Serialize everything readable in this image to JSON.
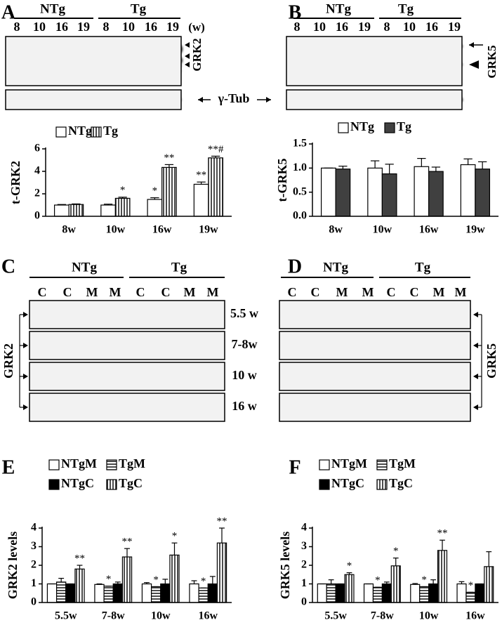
{
  "panels": {
    "A": {
      "letter": "A",
      "groups": [
        "NTg",
        "Tg"
      ],
      "lanes": [
        "8",
        "10",
        "16",
        "19",
        "8",
        "10",
        "16",
        "19"
      ],
      "unit": "(w)",
      "target": "GRK2"
    },
    "B": {
      "letter": "B",
      "groups": [
        "NTg",
        "Tg"
      ],
      "lanes": [
        "8",
        "10",
        "16",
        "19",
        "8",
        "10",
        "16",
        "19"
      ],
      "target": "GRK5"
    },
    "C": {
      "letter": "C",
      "groups": [
        "NTg",
        "Tg"
      ],
      "lanes": [
        "C",
        "C",
        "M",
        "M",
        "C",
        "C",
        "M",
        "M"
      ],
      "times": [
        "5.5 w",
        "7-8w",
        "10 w",
        "16 w"
      ],
      "target": "GRK2"
    },
    "D": {
      "letter": "D",
      "groups": [
        "NTg",
        "Tg"
      ],
      "lanes": [
        "C",
        "C",
        "M",
        "M",
        "C",
        "C",
        "M",
        "M"
      ],
      "target": "GRK5"
    },
    "E": {
      "letter": "E"
    },
    "F": {
      "letter": "F"
    }
  },
  "loading": "γ-Tub",
  "chart_data": [
    {
      "type": "bar",
      "ylabel": "t-GRK2",
      "categories": [
        "8w",
        "10w",
        "16w",
        "19w"
      ],
      "ylim": [
        0,
        6
      ],
      "yticks": [
        0,
        2,
        4,
        6
      ],
      "series": [
        {
          "name": "NTg",
          "color": "#ffffff",
          "values": [
            1.0,
            1.0,
            1.5,
            2.85
          ],
          "errors": [
            0.05,
            0.08,
            0.15,
            0.2
          ],
          "significance": [
            null,
            null,
            "*",
            "**"
          ]
        },
        {
          "name": "Tg",
          "color": "#000000",
          "pattern": "vertical",
          "values": [
            1.05,
            1.6,
            4.35,
            5.2
          ],
          "errors": [
            0.05,
            0.1,
            0.25,
            0.15
          ],
          "significance": [
            null,
            "*",
            "**",
            "**#"
          ]
        }
      ]
    },
    {
      "type": "bar",
      "ylabel": "t-GRK5",
      "categories": [
        "8w",
        "10w",
        "16w",
        "19w"
      ],
      "ylim": [
        0,
        1.5
      ],
      "yticks": [
        {
          "value": 0,
          "label": "0.0"
        },
        {
          "value": 0.5,
          "label": "0.5"
        },
        {
          "value": 1,
          "label": "1.0"
        },
        {
          "value": 1.5,
          "label": "1.5"
        }
      ],
      "series": [
        {
          "name": "NTg",
          "color": "#ffffff",
          "values": [
            1.0,
            1.0,
            1.03,
            1.07
          ],
          "errors": [
            0.0,
            0.15,
            0.17,
            0.12
          ]
        },
        {
          "name": "Tg",
          "color": "#404040",
          "values": [
            0.98,
            0.88,
            0.93,
            0.98
          ],
          "errors": [
            0.06,
            0.2,
            0.09,
            0.15
          ]
        }
      ]
    },
    {
      "type": "bar",
      "ylabel": "GRK2 levels",
      "categories": [
        "5.5w",
        "7-8w",
        "10w",
        "16w"
      ],
      "ylim": [
        0,
        4
      ],
      "yticks": [
        0,
        1,
        2,
        3,
        4
      ],
      "series": [
        {
          "name": "NTgM",
          "color": "#ffffff",
          "values": [
            1.0,
            0.97,
            1.0,
            1.0
          ],
          "errors": [
            0.0,
            0.03,
            0.07,
            0.17
          ]
        },
        {
          "name": "TgM",
          "color": "#000000",
          "pattern": "horizontal",
          "values": [
            1.1,
            0.88,
            0.85,
            0.78
          ],
          "errors": [
            0.2,
            0.0,
            0.0,
            0.0
          ],
          "significance": [
            null,
            "*",
            "*",
            "*"
          ]
        },
        {
          "name": "NTgC",
          "color": "#000000",
          "values": [
            1.0,
            1.0,
            1.0,
            1.0
          ],
          "errors": [
            0.0,
            0.1,
            0.25,
            0.4
          ]
        },
        {
          "name": "TgC",
          "color": "#000000",
          "pattern": "vertical",
          "values": [
            1.8,
            2.45,
            2.55,
            3.2
          ],
          "errors": [
            0.2,
            0.45,
            0.65,
            0.8
          ],
          "significance": [
            "**",
            "**",
            "*",
            "**"
          ]
        }
      ]
    },
    {
      "type": "bar",
      "ylabel": "GRK5 levels",
      "categories": [
        "5.5w",
        "7-8w",
        "10w",
        "16w"
      ],
      "ylim": [
        0,
        4
      ],
      "yticks": [
        0,
        1,
        2,
        3,
        4
      ],
      "series": [
        {
          "name": "NTgM",
          "color": "#ffffff",
          "values": [
            1.0,
            1.0,
            0.97,
            1.0
          ],
          "errors": [
            0.0,
            0.0,
            0.05,
            0.12
          ]
        },
        {
          "name": "TgM",
          "color": "#000000",
          "pattern": "horizontal",
          "values": [
            1.0,
            0.82,
            0.85,
            0.55
          ],
          "errors": [
            0.22,
            0.0,
            0.0,
            0.0
          ],
          "significance": [
            null,
            "*",
            "*",
            "*"
          ]
        },
        {
          "name": "NTgC",
          "color": "#000000",
          "values": [
            1.0,
            1.0,
            1.0,
            1.0
          ],
          "errors": [
            0.0,
            0.1,
            0.22,
            0.0
          ]
        },
        {
          "name": "TgC",
          "color": "#000000",
          "pattern": "vertical",
          "values": [
            1.5,
            1.97,
            2.8,
            1.93
          ],
          "errors": [
            0.1,
            0.42,
            0.55,
            0.8
          ],
          "significance": [
            "*",
            "*",
            "**",
            null
          ]
        }
      ]
    }
  ]
}
